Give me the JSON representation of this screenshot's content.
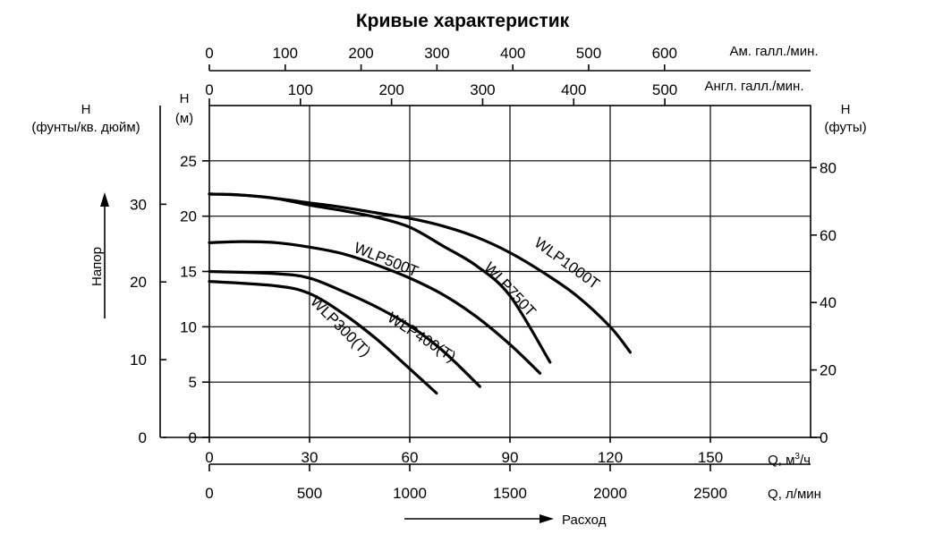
{
  "chart_data": {
    "type": "line",
    "title": "Кривые характеристик",
    "x_axis_bottom": {
      "label": "Q, м³/ч",
      "ticks": [
        "0",
        "30",
        "60",
        "90",
        "120",
        "150"
      ],
      "range": [
        0,
        180
      ]
    },
    "x_axis_bottom2": {
      "label": "Q, л/мин",
      "ticks": [
        "0",
        "500",
        "1000",
        "1500",
        "2000",
        "2500"
      ],
      "range": [
        0,
        3000
      ]
    },
    "x_axis_top": {
      "label": "Ам. галл./мин.",
      "ticks": [
        "0",
        "100",
        "200",
        "300",
        "400",
        "500",
        "600"
      ],
      "range": [
        0,
        792.5
      ]
    },
    "x_axis_top2": {
      "label": "Англ. галл./мин.",
      "ticks": [
        "0",
        "100",
        "200",
        "300",
        "400",
        "500"
      ],
      "range": [
        0,
        660
      ]
    },
    "y_axis_m": {
      "label_line1": "H",
      "label_line2": "(м)",
      "ticks": [
        "0",
        "5",
        "10",
        "15",
        "20",
        "25"
      ],
      "range": [
        0,
        30
      ]
    },
    "y_axis_psi": {
      "label_line1": "H",
      "label_line2": "(фунты/кв. дюйм)",
      "ticks": [
        "0",
        "10",
        "20",
        "30"
      ],
      "range": [
        0,
        42.7
      ]
    },
    "y_axis_ft": {
      "label_line1": "H",
      "label_line2": "(футы)",
      "ticks": [
        "0",
        "20",
        "40",
        "60",
        "80"
      ],
      "range": [
        0,
        98.4
      ]
    },
    "ylabel": "Напор",
    "xlabel": "Расход",
    "grid": true,
    "series": [
      {
        "name": "WLP300(T)",
        "x": [
          0,
          20,
          30,
          40,
          50,
          60,
          68
        ],
        "y": [
          14.1,
          13.7,
          13.0,
          11.2,
          8.9,
          6.2,
          4.0
        ]
      },
      {
        "name": "WLP400(T)",
        "x": [
          0,
          20,
          30,
          40,
          50,
          60,
          70,
          81
        ],
        "y": [
          15.0,
          14.8,
          14.4,
          13.2,
          11.8,
          10.1,
          7.8,
          4.6
        ]
      },
      {
        "name": "WLP500T",
        "x": [
          0,
          10,
          20,
          30,
          40,
          50,
          60,
          70,
          80,
          90,
          99
        ],
        "y": [
          17.6,
          17.7,
          17.6,
          17.2,
          16.6,
          15.6,
          14.4,
          12.9,
          10.9,
          8.4,
          5.8
        ]
      },
      {
        "name": "WLP750T",
        "x": [
          0,
          10,
          20,
          30,
          40,
          50,
          60,
          70,
          80,
          90,
          102
        ],
        "y": [
          22.0,
          21.9,
          21.6,
          21.0,
          20.5,
          19.9,
          19.0,
          17.3,
          15.5,
          12.8,
          6.8
        ]
      },
      {
        "name": "WLP1000T",
        "x": [
          0,
          10,
          20,
          30,
          40,
          50,
          60,
          70,
          80,
          90,
          100,
          110,
          120,
          126
        ],
        "y": [
          22.0,
          21.9,
          21.6,
          21.2,
          20.8,
          20.3,
          19.8,
          19.1,
          18.1,
          16.7,
          14.9,
          12.8,
          10.0,
          7.7
        ]
      }
    ]
  }
}
